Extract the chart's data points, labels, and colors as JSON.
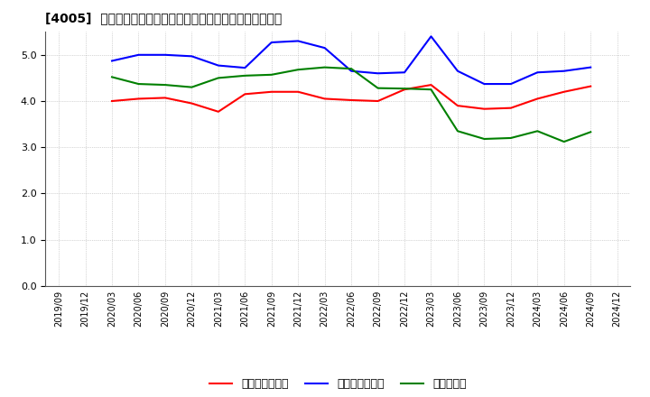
{
  "title": "[4005]  売上債権回転率、買入債務回転率、在庫回転率の推移",
  "xlabel_dates": [
    "2019/09",
    "2019/12",
    "2020/03",
    "2020/06",
    "2020/09",
    "2020/12",
    "2021/03",
    "2021/06",
    "2021/09",
    "2021/12",
    "2022/03",
    "2022/06",
    "2022/09",
    "2022/12",
    "2023/03",
    "2023/06",
    "2023/09",
    "2023/12",
    "2024/03",
    "2024/06",
    "2024/09",
    "2024/12"
  ],
  "receivables_turnover": [
    null,
    null,
    4.0,
    4.05,
    4.07,
    3.95,
    3.77,
    4.15,
    4.2,
    4.2,
    4.05,
    4.02,
    4.0,
    4.25,
    4.35,
    3.9,
    3.83,
    3.85,
    4.05,
    4.2,
    4.32,
    null
  ],
  "payables_turnover": [
    null,
    null,
    4.87,
    5.0,
    5.0,
    4.97,
    4.77,
    4.72,
    5.27,
    5.3,
    5.15,
    4.65,
    4.6,
    4.62,
    5.4,
    4.65,
    4.37,
    4.37,
    4.62,
    4.65,
    4.73,
    null
  ],
  "inventory_turnover": [
    null,
    null,
    4.52,
    4.37,
    4.35,
    4.3,
    4.5,
    4.55,
    4.57,
    4.68,
    4.73,
    4.7,
    4.28,
    4.27,
    4.25,
    3.35,
    3.18,
    3.2,
    3.35,
    3.12,
    3.33,
    null
  ],
  "receivables_color": "#ff0000",
  "payables_color": "#0000ff",
  "inventory_color": "#008000",
  "ylim": [
    0.0,
    5.5
  ],
  "yticks": [
    0.0,
    1.0,
    2.0,
    3.0,
    4.0,
    5.0
  ],
  "legend_labels": [
    "売上債権回転率",
    "買入債務回転率",
    "在庫回転率"
  ],
  "background_color": "#ffffff",
  "grid_color": "#b0b0b0"
}
